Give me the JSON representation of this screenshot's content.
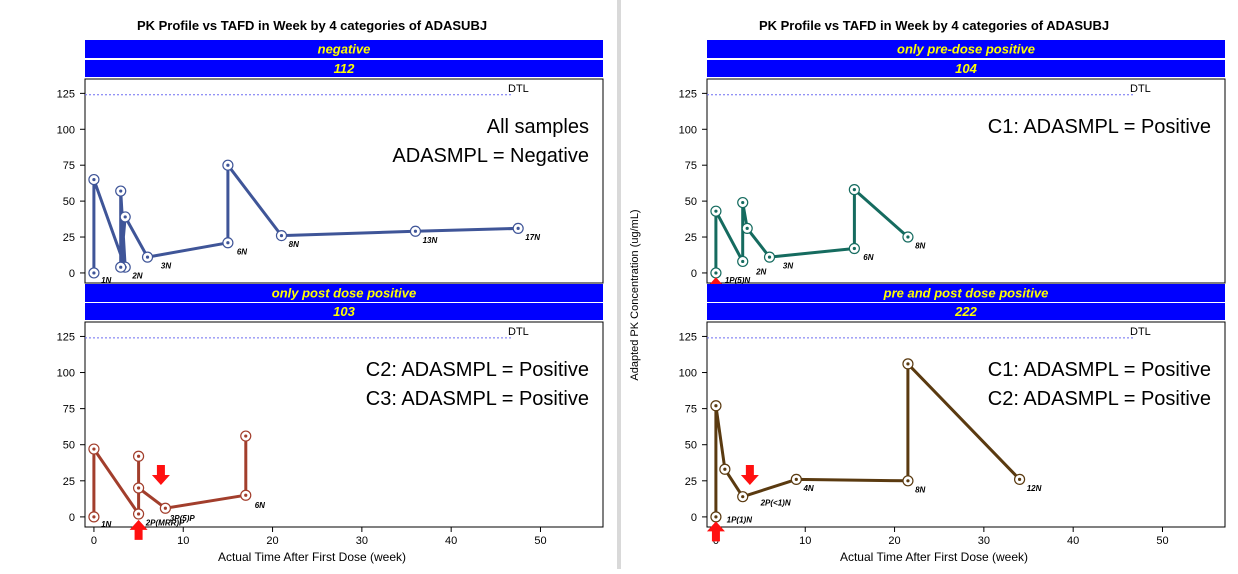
{
  "colors": {
    "header_fill": "#0000ff",
    "header_text": "#ffff00",
    "dtl_line": "#6e6ef2",
    "series_negative": "#3f5598",
    "series_pre": "#156b5f",
    "series_post": "#a23e2c",
    "series_both": "#5a3a10",
    "arrow": "#ff1010"
  },
  "figures": [
    {
      "title": "PK Profile vs  TAFD in Week  by 4 categories of ADASUBJ",
      "ylabel": "",
      "xlabel": "Actual Time After First Dose (week)",
      "show_x_ticks": false
    },
    {
      "title": "PK Profile vs  TAFD in Week  by 4 categories of ADASUBJ",
      "ylabel": "Adapted PK Concentration (ug/mL)",
      "xlabel": "Actual Time After First Dose (week)",
      "show_x_ticks": true
    }
  ],
  "chart_data": [
    {
      "type": "line",
      "category": "negative",
      "subject": "112",
      "figure": 0,
      "row": 0,
      "color_key": "series_negative",
      "xlim": [
        -1,
        57
      ],
      "ylim": [
        -7,
        135
      ],
      "xticks": [
        0,
        10,
        20,
        30,
        40,
        50
      ],
      "yticks": [
        0,
        25,
        50,
        75,
        100,
        125
      ],
      "reference_line": {
        "label": "DTL",
        "y": 124
      },
      "annotation_lines": [
        "All samples",
        "ADASMPL = Negative"
      ],
      "x": [
        0,
        0,
        3.5,
        3,
        3,
        3.5,
        6,
        15,
        15,
        21,
        36,
        47.5
      ],
      "y": [
        0,
        65,
        4,
        57,
        4,
        39,
        11,
        21,
        75,
        26,
        29,
        31
      ],
      "point_labels": [
        {
          "text": "1N",
          "x": 0.8,
          "y": -7
        },
        {
          "text": "2N",
          "x": 4.3,
          "y": -4
        },
        {
          "text": "3N",
          "x": 7.5,
          "y": 3
        },
        {
          "text": "6N",
          "x": 16,
          "y": 13
        },
        {
          "text": "8N",
          "x": 21.8,
          "y": 18
        },
        {
          "text": "13N",
          "x": 36.8,
          "y": 21
        },
        {
          "text": "17N",
          "x": 48.3,
          "y": 23
        }
      ],
      "arrows": []
    },
    {
      "type": "line",
      "category": "only post dose positive",
      "subject": "103",
      "figure": 0,
      "row": 1,
      "color_key": "series_post",
      "xlim": [
        -1,
        57
      ],
      "ylim": [
        -7,
        135
      ],
      "xticks": [
        0,
        10,
        20,
        30,
        40,
        50
      ],
      "yticks": [
        0,
        25,
        50,
        75,
        100,
        125
      ],
      "reference_line": {
        "label": "DTL",
        "y": 124
      },
      "annotation_lines": [
        "C2: ADASMPL = Positive",
        "C3: ADASMPL = Positive"
      ],
      "x": [
        0,
        0,
        5,
        5,
        5,
        8,
        17,
        17
      ],
      "y": [
        0,
        47,
        2,
        42,
        20,
        6,
        15,
        56
      ],
      "point_labels": [
        {
          "text": "1N",
          "x": 0.8,
          "y": -7
        },
        {
          "text": "2P(MRR)P",
          "x": 5.8,
          "y": -6
        },
        {
          "text": "3P(5)P",
          "x": 8.5,
          "y": -3
        },
        {
          "text": "6N",
          "x": 18,
          "y": 6
        }
      ],
      "arrows": [
        {
          "direction": "up",
          "x": 5,
          "y": -9
        },
        {
          "direction": "down",
          "x": 7.5,
          "y": 29
        }
      ]
    },
    {
      "type": "line",
      "category": "only pre-dose positive",
      "subject": "104",
      "figure": 1,
      "row": 0,
      "color_key": "series_pre",
      "xlim": [
        -1,
        57
      ],
      "ylim": [
        -7,
        135
      ],
      "xticks": [
        0,
        10,
        20,
        30,
        40,
        50
      ],
      "yticks": [
        0,
        25,
        50,
        75,
        100,
        125
      ],
      "reference_line": {
        "label": "DTL",
        "y": 124
      },
      "annotation_lines": [
        "C1: ADASMPL = Positive"
      ],
      "x": [
        0,
        0,
        3,
        3,
        3.5,
        6,
        15.5,
        15.5,
        21.5
      ],
      "y": [
        0,
        43,
        8,
        49,
        31,
        11,
        17,
        58,
        25
      ],
      "point_labels": [
        {
          "text": "1P(5)N",
          "x": 1,
          "y": -7
        },
        {
          "text": "2N",
          "x": 4.5,
          "y": -1
        },
        {
          "text": "3N",
          "x": 7.5,
          "y": 3
        },
        {
          "text": "6N",
          "x": 16.5,
          "y": 9
        },
        {
          "text": "8N",
          "x": 22.3,
          "y": 17
        }
      ],
      "arrows": [
        {
          "direction": "up",
          "x": 0,
          "y": -10
        }
      ]
    },
    {
      "type": "line",
      "category": "pre and post dose positive",
      "subject": "222",
      "figure": 1,
      "row": 1,
      "color_key": "series_both",
      "xlim": [
        -1,
        57
      ],
      "ylim": [
        -7,
        135
      ],
      "xticks": [
        0,
        10,
        20,
        30,
        40,
        50
      ],
      "yticks": [
        0,
        25,
        50,
        75,
        100,
        125
      ],
      "reference_line": {
        "label": "DTL",
        "y": 124
      },
      "annotation_lines": [
        "C1: ADASMPL = Positive",
        "C2: ADASMPL = Positive"
      ],
      "x": [
        0,
        0,
        1,
        3,
        9,
        21.5,
        21.5,
        34
      ],
      "y": [
        0,
        77,
        33,
        14,
        26,
        25,
        106,
        26
      ],
      "point_labels": [
        {
          "text": "1P(1)N",
          "x": 1.2,
          "y": -4
        },
        {
          "text": "2P(<1)N",
          "x": 5,
          "y": 8
        },
        {
          "text": "4N",
          "x": 9.8,
          "y": 18
        },
        {
          "text": "8N",
          "x": 22.3,
          "y": 17
        },
        {
          "text": "12N",
          "x": 34.8,
          "y": 18
        }
      ],
      "arrows": [
        {
          "direction": "up",
          "x": 0,
          "y": -10
        },
        {
          "direction": "down",
          "x": 3.8,
          "y": 29
        }
      ]
    }
  ]
}
